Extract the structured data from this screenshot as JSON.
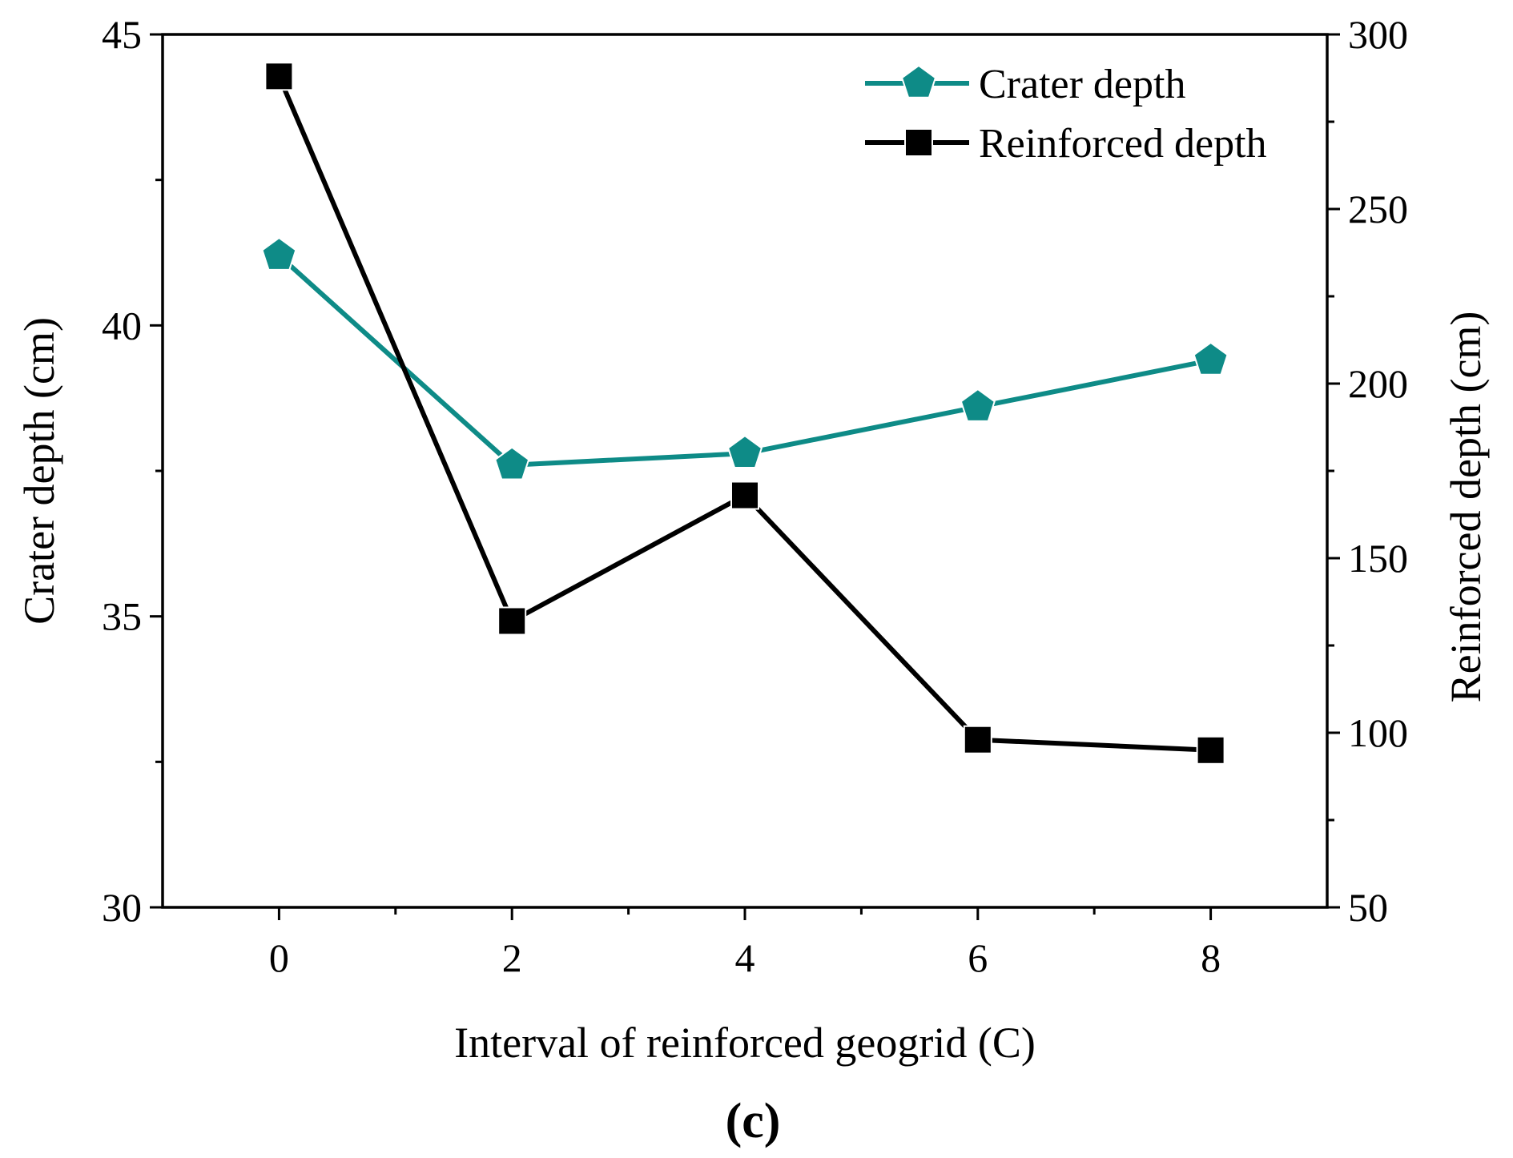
{
  "chart_data": {
    "type": "line",
    "xlabel": "Interval of reinforced geogrid (C)",
    "ylabel_left": "Crater depth (cm)",
    "ylabel_right": "Reinforced depth (cm)",
    "panel_label": "(c)",
    "x": [
      0,
      2,
      4,
      6,
      8
    ],
    "xlim": [
      -1,
      9
    ],
    "x_ticks": [
      "0",
      "2",
      "4",
      "6",
      "8"
    ],
    "ylim_left": [
      30,
      45
    ],
    "y_ticks_left": [
      "30",
      "35",
      "40",
      "45"
    ],
    "ylim_right": [
      50,
      300
    ],
    "y_ticks_right": [
      "50",
      "100",
      "150",
      "200",
      "250",
      "300"
    ],
    "grid": false,
    "legend_position": "top-right",
    "series": [
      {
        "name": "Crater depth",
        "axis": "left",
        "marker": "pentagon",
        "color": "#0e8b87",
        "values": [
          41.2,
          37.6,
          37.8,
          38.6,
          39.4
        ]
      },
      {
        "name": "Reinforced depth",
        "axis": "right",
        "marker": "square",
        "color": "#000000",
        "values": [
          288,
          132,
          168,
          98,
          95
        ]
      }
    ]
  }
}
